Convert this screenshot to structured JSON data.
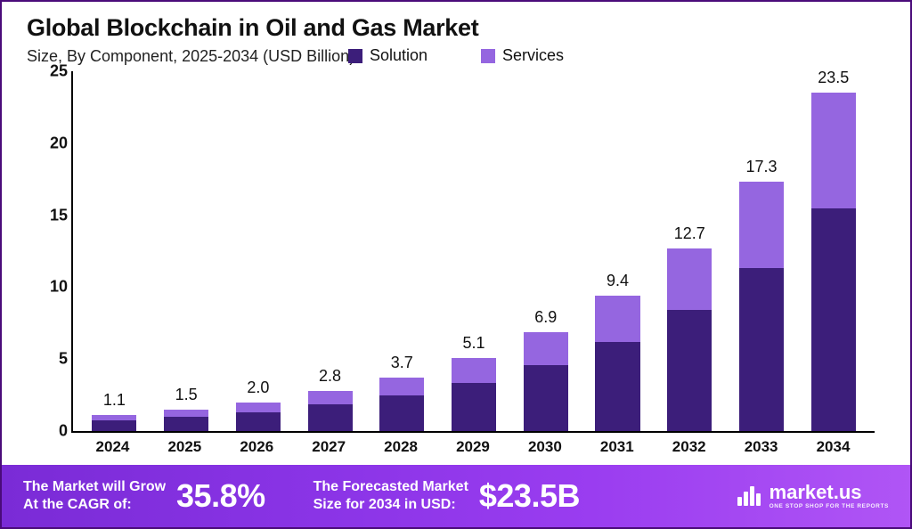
{
  "title": "Global Blockchain in Oil and Gas Market",
  "subtitle": "Size, By Component, 2025-2034 (USD Billion)",
  "chart": {
    "type": "stacked-bar",
    "background_color": "#ffffff",
    "border_color": "#4a0b7a",
    "axis_color": "#000000",
    "label_color": "#111111",
    "ylim": [
      0,
      25
    ],
    "ytick_step": 5,
    "yticks": [
      0,
      5,
      10,
      15,
      20,
      25
    ],
    "tick_fontsize": 18,
    "tick_fontweight": 700,
    "bar_width_pct": 62,
    "bar_label_fontsize": 18,
    "x_label_fontsize": 17,
    "x_label_fontweight": 800,
    "series": [
      {
        "key": "solution",
        "label": "Solution",
        "color": "#3c1e7a"
      },
      {
        "key": "services",
        "label": "Services",
        "color": "#9566e0"
      }
    ],
    "categories": [
      "2024",
      "2025",
      "2026",
      "2027",
      "2028",
      "2029",
      "2030",
      "2031",
      "2032",
      "2033",
      "2034"
    ],
    "totals": [
      1.1,
      1.5,
      2.0,
      2.8,
      3.7,
      5.1,
      6.9,
      9.4,
      12.7,
      17.3,
      23.5
    ],
    "solution": [
      0.75,
      1.0,
      1.3,
      1.85,
      2.45,
      3.35,
      4.55,
      6.2,
      8.4,
      11.35,
      15.5
    ],
    "services": [
      0.35,
      0.5,
      0.7,
      0.95,
      1.25,
      1.75,
      2.35,
      3.2,
      4.3,
      5.95,
      8.0
    ]
  },
  "footer": {
    "cagr_label": "The Market will Grow\nAt the CAGR of:",
    "cagr_value": "35.8%",
    "forecast_label": "The Forecasted Market\nSize for 2034 in USD:",
    "forecast_value": "$23.5B",
    "brand_name": "market.us",
    "brand_tagline": "ONE STOP SHOP FOR THE REPORTS",
    "bg_gradient": [
      "#7a2bd6",
      "#b055f5"
    ],
    "text_color": "#ffffff",
    "big_fontsize": 36,
    "label_fontsize": 16
  }
}
